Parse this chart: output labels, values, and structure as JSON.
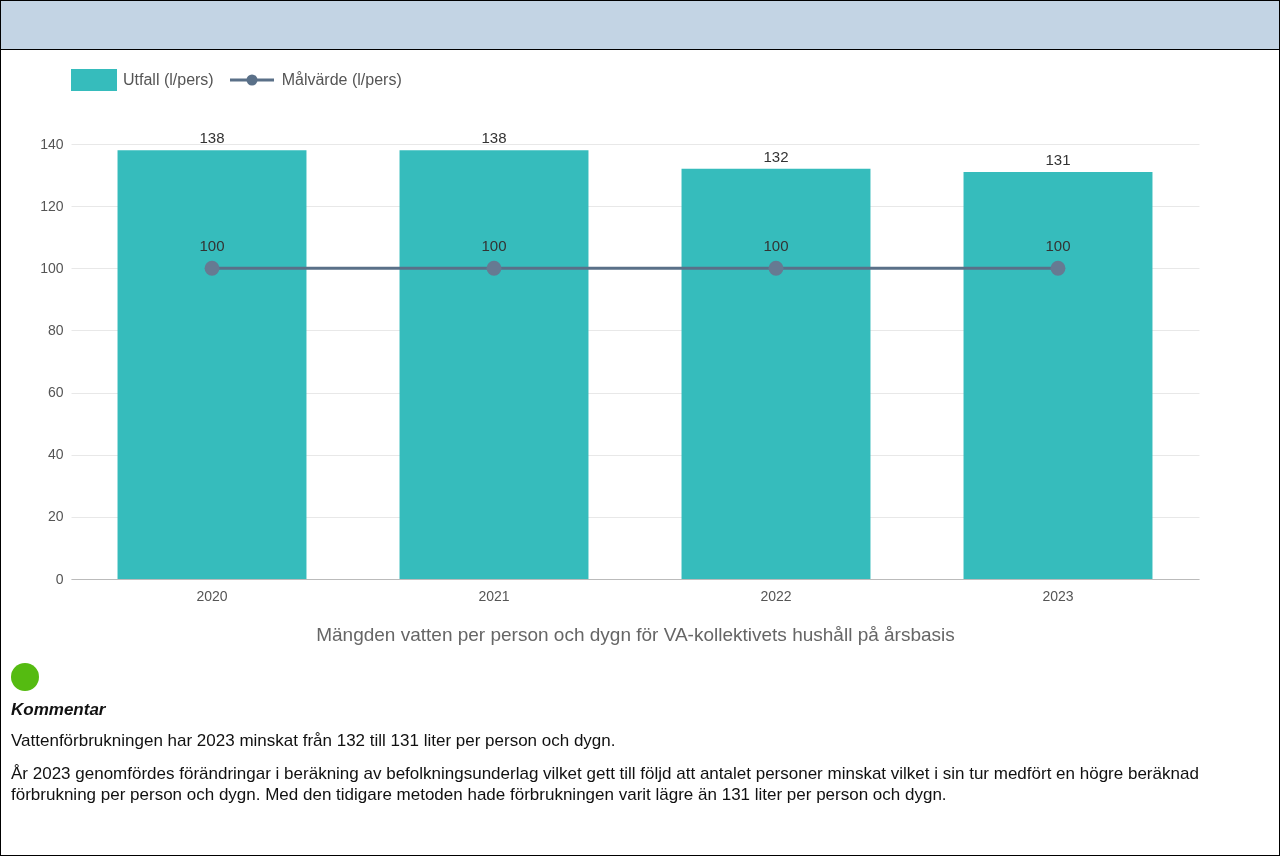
{
  "chart_data": {
    "type": "bar",
    "categories": [
      "2020",
      "2021",
      "2022",
      "2023"
    ],
    "series": [
      {
        "name": "Utfall (l/pers)",
        "color": "#36bcbc",
        "values": [
          138,
          138,
          132,
          131
        ]
      },
      {
        "name": "Målvärde (l/pers)",
        "type": "line",
        "color": "#5a7088",
        "values": [
          100,
          100,
          100,
          100
        ]
      }
    ],
    "ylim": [
      0,
      140
    ],
    "yticks": [
      0,
      20,
      40,
      60,
      80,
      100,
      120,
      140
    ],
    "grid": "y",
    "data_labels": true,
    "legend": "top left",
    "marker": "circle",
    "xlabel": "Mängden vatten per person och dygn för VA-kollektivets hushåll på årsbasis",
    "annotations": [
      "Kommentar",
      "Vattenförbrukningen har 2023 minskat från 132 till 131 liter per person och dygn.",
      "År 2023 genomfördes förändringar i beräkning av befolkningsunderlag vilket gett till följd att antalet personer minskat vilket i sin tur medfört en högre beräknad förbrukning per person och dygn. Med den tidigare metoden hade förbrukningen varit lägre än 131 liter per person och dygn."
    ]
  }
}
